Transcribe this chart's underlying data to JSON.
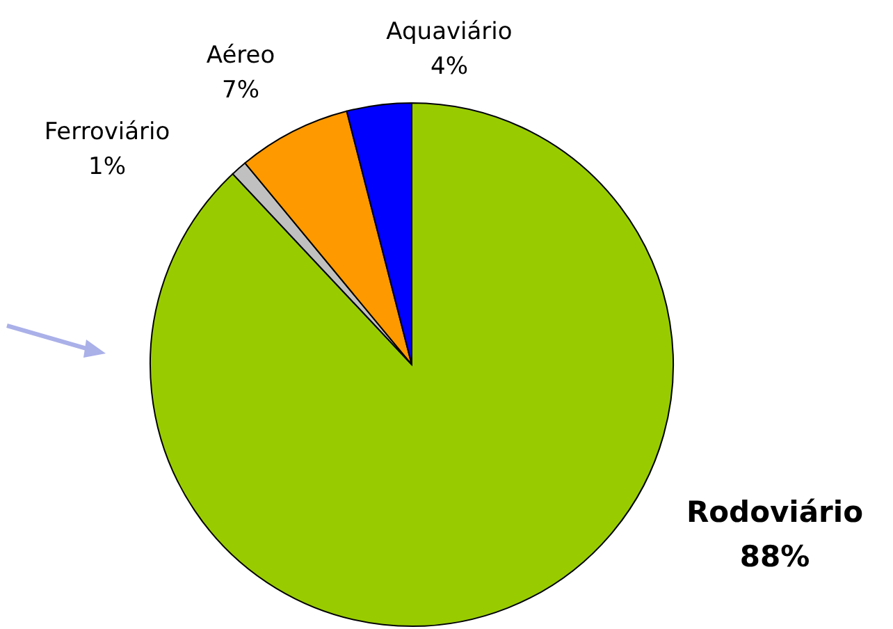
{
  "chart_data": {
    "type": "pie",
    "categories": [
      "Rodoviário",
      "Ferroviário",
      "Aéreo",
      "Aquaviário"
    ],
    "values": [
      88,
      1,
      7,
      4
    ],
    "colors": [
      "#99cc00",
      "#c0c0c0",
      "#ff9900",
      "#0000ff"
    ],
    "value_labels": [
      "88%",
      "1%",
      "7%",
      "4%"
    ],
    "legend": false
  }
}
